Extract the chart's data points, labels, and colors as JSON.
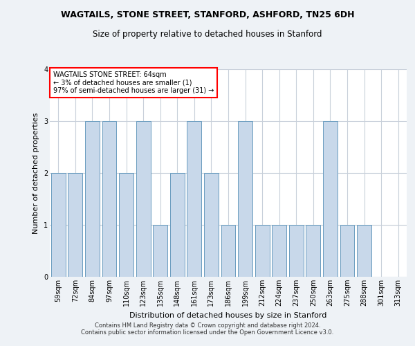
{
  "title": "WAGTAILS, STONE STREET, STANFORD, ASHFORD, TN25 6DH",
  "subtitle": "Size of property relative to detached houses in Stanford",
  "xlabel": "Distribution of detached houses by size in Stanford",
  "ylabel": "Number of detached properties",
  "categories": [
    "59sqm",
    "72sqm",
    "84sqm",
    "97sqm",
    "110sqm",
    "123sqm",
    "135sqm",
    "148sqm",
    "161sqm",
    "173sqm",
    "186sqm",
    "199sqm",
    "212sqm",
    "224sqm",
    "237sqm",
    "250sqm",
    "263sqm",
    "275sqm",
    "288sqm",
    "301sqm",
    "313sqm"
  ],
  "values": [
    2,
    2,
    3,
    3,
    2,
    3,
    1,
    2,
    3,
    2,
    1,
    3,
    1,
    1,
    1,
    1,
    3,
    1,
    1,
    0,
    0
  ],
  "bar_color": "#c8d8ea",
  "bar_edge_color": "#6a9cbf",
  "annotation_text": "WAGTAILS STONE STREET: 64sqm\n← 3% of detached houses are smaller (1)\n97% of semi-detached houses are larger (31) →",
  "annotation_box_color": "white",
  "annotation_box_edge_color": "red",
  "ylim": [
    0,
    4
  ],
  "yticks": [
    0,
    1,
    2,
    3,
    4
  ],
  "title_fontsize": 9,
  "subtitle_fontsize": 8.5,
  "xlabel_fontsize": 8,
  "ylabel_fontsize": 8,
  "tick_fontsize": 7,
  "annotation_fontsize": 7,
  "footer_line1": "Contains HM Land Registry data © Crown copyright and database right 2024.",
  "footer_line2": "Contains public sector information licensed under the Open Government Licence v3.0.",
  "background_color": "#eef2f6",
  "plot_background_color": "#ffffff",
  "grid_color": "#c8d0da"
}
